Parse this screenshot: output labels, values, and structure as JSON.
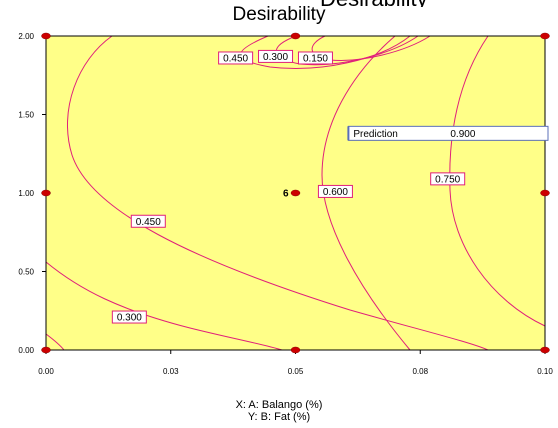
{
  "chart_data": {
    "type": "contour",
    "title": "Desirability",
    "xlabel": "X: A: Balango (%)",
    "ylabel": "Y: B: Fat (%)",
    "xlim": [
      0.0,
      0.1
    ],
    "ylim": [
      0.0,
      2.0
    ],
    "x_ticks": [
      "0.00",
      "0.03",
      "0.05",
      "0.08",
      "0.10"
    ],
    "y_ticks": [
      "0.00",
      "0.50",
      "1.00",
      "1.50",
      "2.00"
    ],
    "contour_labels": [
      {
        "text": "0.450",
        "x": 0.038,
        "y": 1.86
      },
      {
        "text": "0.300",
        "x": 0.046,
        "y": 1.87
      },
      {
        "text": "0.150",
        "x": 0.054,
        "y": 1.86
      },
      {
        "text": "0.600",
        "x": 0.058,
        "y": 1.01
      },
      {
        "text": "0.750",
        "x": 0.0805,
        "y": 1.09
      },
      {
        "text": "0.450",
        "x": 0.0205,
        "y": 0.82
      },
      {
        "text": "0.300",
        "x": 0.0167,
        "y": 0.21
      }
    ],
    "design_point": {
      "label": "6",
      "x": 0.05,
      "y": 1.0
    },
    "design_points": [
      {
        "x": 0.0,
        "y": 2.0
      },
      {
        "x": 0.05,
        "y": 2.0
      },
      {
        "x": 0.1,
        "y": 2.0
      },
      {
        "x": 0.0,
        "y": 1.0
      },
      {
        "x": 0.05,
        "y": 1.0
      },
      {
        "x": 0.1,
        "y": 1.0
      },
      {
        "x": 0.0,
        "y": 0.0
      },
      {
        "x": 0.05,
        "y": 0.0
      },
      {
        "x": 0.1,
        "y": 0.0
      }
    ],
    "prediction": {
      "label": "Prediction",
      "value": "0.900",
      "x": 0.061,
      "y": 1.38
    },
    "fill_color": "#ffff88",
    "line_color": "#e0207a",
    "point_color": "#cc0000"
  }
}
